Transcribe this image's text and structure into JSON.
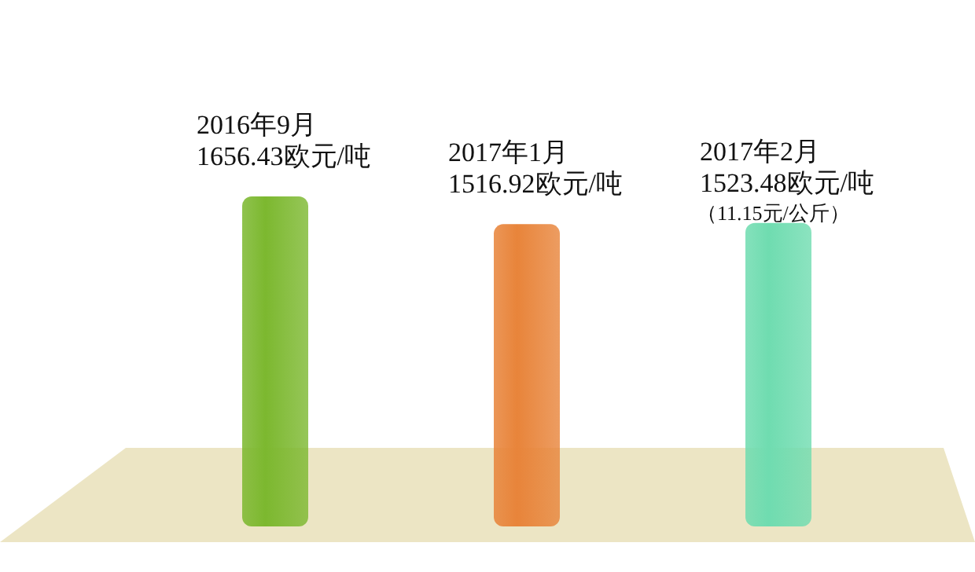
{
  "chart_data": {
    "type": "bar",
    "categories": [
      "2016年9月",
      "2017年1月",
      "2017年2月"
    ],
    "values": [
      1656.43,
      1516.92,
      1523.48
    ],
    "colors": [
      "#7cb82f",
      "#e8843a",
      "#6fdcb0"
    ],
    "value_labels": [
      "1656.43欧元/吨",
      "1516.92欧元/吨",
      "1523.48欧元/吨"
    ],
    "annotations": [
      {
        "text": "（11.15元/公斤）",
        "x": "2017年2月",
        "y": 1523.48
      }
    ]
  }
}
